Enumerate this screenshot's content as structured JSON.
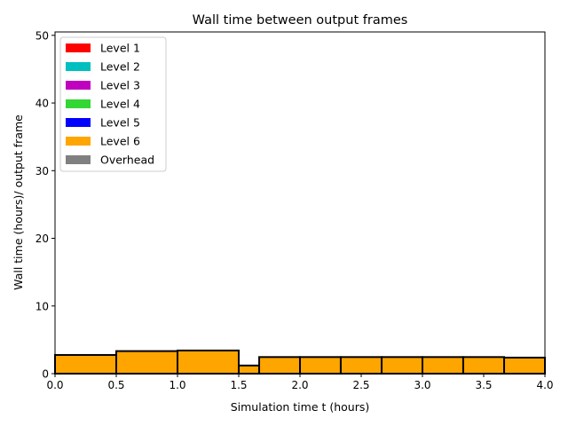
{
  "chart_data": {
    "type": "bar",
    "title": "Wall time between output frames",
    "xlabel": "Simulation time t (hours)",
    "ylabel": "Wall time (hours)/ output frame",
    "xlim": [
      0,
      4.0
    ],
    "ylim": [
      0,
      50.5
    ],
    "xticks": [
      "0.0",
      "0.5",
      "1.0",
      "1.5",
      "2.0",
      "2.5",
      "3.0",
      "3.5",
      "4.0"
    ],
    "yticks": [
      "0",
      "10",
      "20",
      "30",
      "40",
      "50"
    ],
    "grid": false,
    "legend_position": "top-left",
    "legend": [
      {
        "name": "Level 1",
        "color": "#ff0000"
      },
      {
        "name": "Level 2",
        "color": "#00bfbf"
      },
      {
        "name": "Level 3",
        "color": "#bf00bf"
      },
      {
        "name": "Level 4",
        "color": "#33d633"
      },
      {
        "name": "Level 5",
        "color": "#0000ff"
      },
      {
        "name": "Level 6",
        "color": "#ffa500"
      },
      {
        "name": "Overhead",
        "color": "#808080"
      }
    ],
    "bars": [
      {
        "x0": 0.0,
        "x1": 0.5,
        "value": 2.76
      },
      {
        "x0": 0.5,
        "x1": 1.0,
        "value": 3.33
      },
      {
        "x0": 1.0,
        "x1": 1.5,
        "value": 3.42
      },
      {
        "x0": 1.5,
        "x1": 1.667,
        "value": 1.2
      },
      {
        "x0": 1.667,
        "x1": 2.0,
        "value": 2.45
      },
      {
        "x0": 2.0,
        "x1": 2.333,
        "value": 2.45
      },
      {
        "x0": 2.333,
        "x1": 2.667,
        "value": 2.45
      },
      {
        "x0": 2.667,
        "x1": 3.0,
        "value": 2.45
      },
      {
        "x0": 3.0,
        "x1": 3.333,
        "value": 2.45
      },
      {
        "x0": 3.333,
        "x1": 3.667,
        "value": 2.45
      },
      {
        "x0": 3.667,
        "x1": 4.0,
        "value": 2.37
      }
    ],
    "bar_color": "#ffa500"
  }
}
